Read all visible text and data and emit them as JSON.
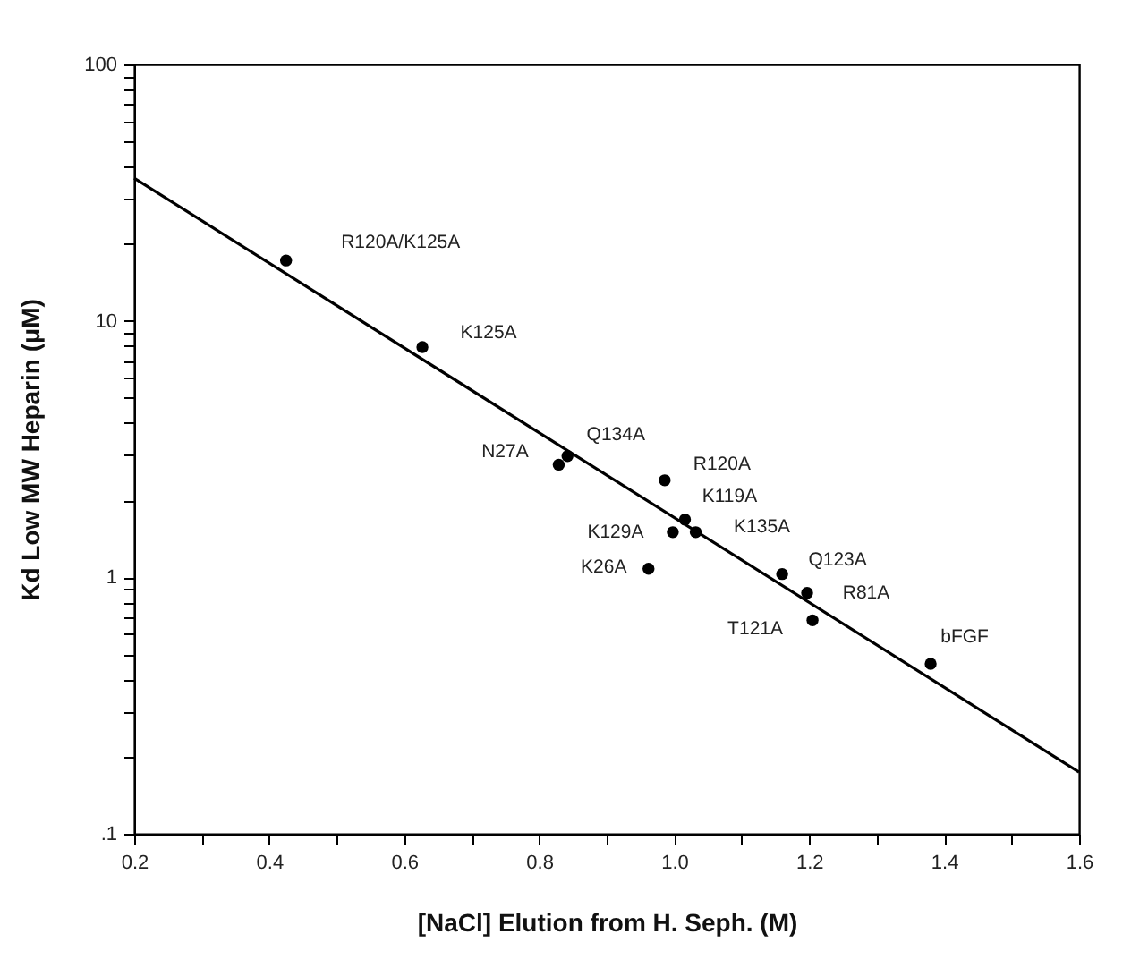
{
  "chart_data": {
    "type": "scatter",
    "xlabel": "[NaCl] Elution from H. Seph. (M)",
    "ylabel": "Kd  Low MW Heparin (μM)",
    "log": "y",
    "grid": false,
    "marker": "circle",
    "line_style": "solid",
    "xlim": [
      0.2,
      1.6
    ],
    "xticks": [
      0.2,
      {
        "value": 0.3,
        "label": null
      },
      0.4,
      {
        "value": 0.5,
        "label": null
      },
      0.6,
      {
        "value": 0.7,
        "label": null
      },
      0.8,
      {
        "value": 0.9,
        "label": null
      },
      {
        "value": 1.0,
        "label": "1.0"
      },
      {
        "value": 1.1,
        "label": null
      },
      1.2,
      {
        "value": 1.3,
        "label": null
      },
      1.4,
      {
        "value": 1.5,
        "label": null
      },
      1.6
    ],
    "ylim": [
      0.1,
      100
    ],
    "yticks": [
      {
        "value": 0.1,
        "label": ".1"
      },
      {
        "value": 0.2,
        "label": null
      },
      {
        "value": 0.3,
        "label": null
      },
      {
        "value": 0.4,
        "label": null
      },
      {
        "value": 0.5,
        "label": null
      },
      {
        "value": 0.6,
        "label": null
      },
      {
        "value": 0.7,
        "label": null
      },
      {
        "value": 0.8,
        "label": null
      },
      {
        "value": 0.9,
        "label": null
      },
      1,
      {
        "value": 2,
        "label": null
      },
      {
        "value": 3,
        "label": null
      },
      {
        "value": 4,
        "label": null
      },
      {
        "value": 5,
        "label": null
      },
      {
        "value": 6,
        "label": null
      },
      {
        "value": 7,
        "label": null
      },
      {
        "value": 8,
        "label": null
      },
      {
        "value": 9,
        "label": null
      },
      10,
      {
        "value": 20,
        "label": null
      },
      {
        "value": 30,
        "label": null
      },
      {
        "value": 40,
        "label": null
      },
      {
        "value": 50,
        "label": null
      },
      {
        "value": 60,
        "label": null
      },
      {
        "value": 70,
        "label": null
      },
      {
        "value": 80,
        "label": null
      },
      {
        "value": 90,
        "label": null
      },
      100
    ],
    "series": [
      {
        "color": "#000000",
        "x": [
          0.425,
          0.627,
          0.829,
          0.842,
          0.986,
          1.016,
          0.998,
          1.032,
          0.962,
          1.16,
          1.197,
          1.205,
          1.38
        ],
        "values": [
          17.2,
          7.9,
          2.75,
          2.97,
          2.39,
          1.68,
          1.5,
          1.5,
          1.08,
          1.03,
          0.87,
          0.68,
          0.46
        ]
      },
      {
        "type": "line",
        "marker": "none",
        "color": "#000000",
        "x": [
          0.2,
          1.6
        ],
        "values": [
          36,
          0.174
        ]
      }
    ],
    "annotations": [
      {
        "text": "R120A/K125A",
        "x": 0.425,
        "y": 17.2
      },
      {
        "text": "K125A",
        "x": 0.627,
        "y": 7.9
      },
      {
        "text": "N27A",
        "x": 0.829,
        "y": 2.75
      },
      {
        "text": "Q134A",
        "x": 0.842,
        "y": 2.97
      },
      {
        "text": "R120A",
        "x": 0.986,
        "y": 2.39
      },
      {
        "text": "K119A",
        "x": 1.016,
        "y": 1.68
      },
      {
        "text": "K129A",
        "x": 0.998,
        "y": 1.5
      },
      {
        "text": "K135A",
        "x": 1.032,
        "y": 1.5
      },
      {
        "text": "K26A",
        "x": 0.962,
        "y": 1.08
      },
      {
        "text": "Q123A",
        "x": 1.16,
        "y": 1.03
      },
      {
        "text": "R81A",
        "x": 1.197,
        "y": 0.87
      },
      {
        "text": "T121A",
        "x": 1.205,
        "y": 0.68
      },
      {
        "text": "bFGF",
        "x": 1.38,
        "y": 0.46
      }
    ]
  }
}
